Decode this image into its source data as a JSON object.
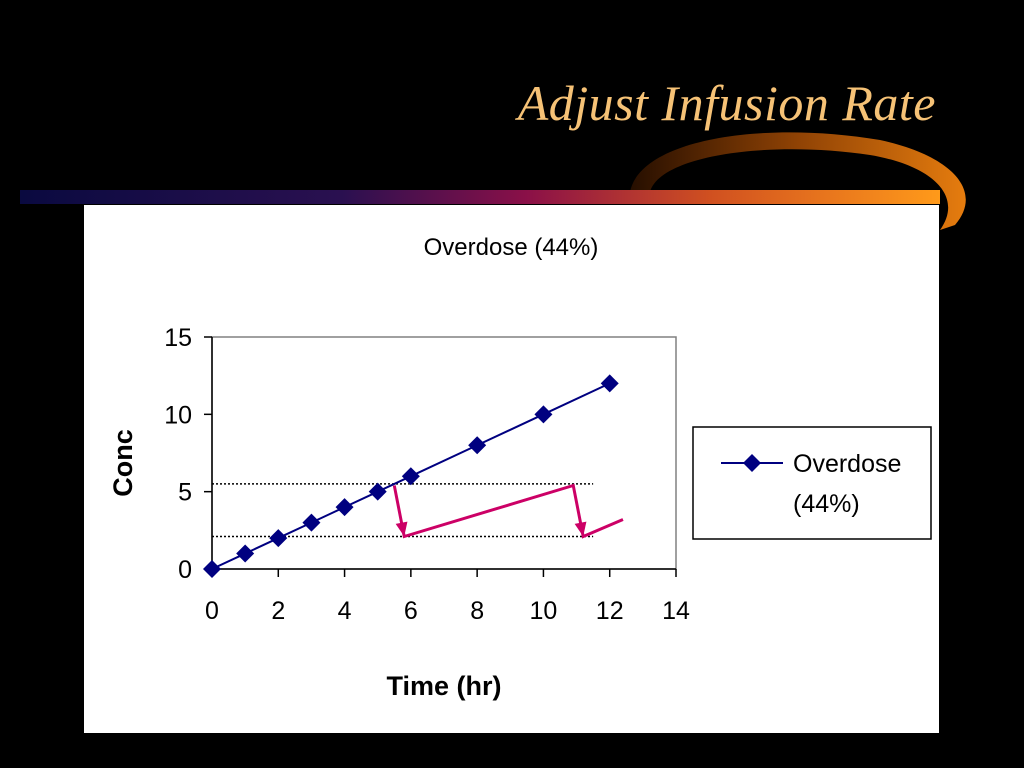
{
  "slide": {
    "title": "Adjust Infusion Rate"
  },
  "colors": {
    "background": "#000000",
    "title": "#f6c276",
    "series": "#000080",
    "arrows": "#cc0066",
    "reference_lines": "#000000"
  },
  "chart_data": {
    "type": "line",
    "title": "Overdose (44%)",
    "xlabel": "Time (hr)",
    "ylabel": "Conc",
    "xlim": [
      0,
      14
    ],
    "ylim": [
      0,
      15
    ],
    "xticks": [
      0,
      2,
      4,
      6,
      8,
      10,
      12,
      14
    ],
    "yticks": [
      0,
      5,
      10,
      15
    ],
    "grid": false,
    "legend_position": "right",
    "series": [
      {
        "name": "Overdose (44%)",
        "legend_lines": [
          "Overdose",
          "(44%)"
        ],
        "marker": "diamond",
        "x": [
          0,
          1,
          2,
          3,
          4,
          5,
          6,
          8,
          10,
          12
        ],
        "y": [
          0,
          1,
          2,
          3,
          4,
          5,
          6,
          8,
          10,
          12
        ]
      }
    ],
    "reference_lines": [
      {
        "y": 5.5,
        "x_range": [
          0,
          11.5
        ],
        "style": "dotted"
      },
      {
        "y": 2.1,
        "x_range": [
          0,
          11.5
        ],
        "style": "dotted"
      }
    ],
    "annotations": [
      {
        "type": "sawtooth-arrows",
        "points": [
          [
            5.5,
            5.4
          ],
          [
            5.8,
            2.1
          ],
          [
            10.9,
            5.4
          ],
          [
            11.2,
            2.1
          ],
          [
            12.4,
            3.2
          ]
        ]
      }
    ]
  }
}
